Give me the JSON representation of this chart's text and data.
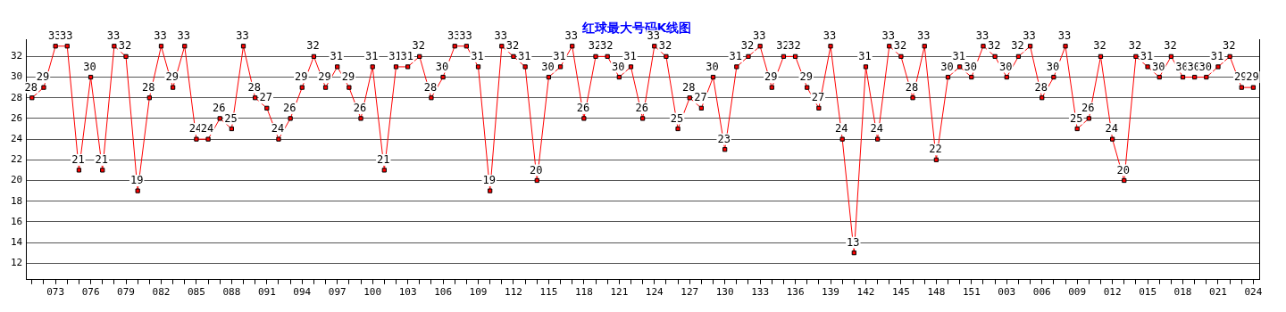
{
  "chart_data": {
    "type": "line",
    "title": "红球最大号码K线图",
    "categories": [
      null,
      null,
      "073",
      null,
      null,
      "076",
      null,
      null,
      "079",
      null,
      null,
      "082",
      null,
      null,
      "085",
      null,
      null,
      "088",
      null,
      null,
      "091",
      null,
      null,
      "094",
      null,
      null,
      "097",
      null,
      null,
      "100",
      null,
      null,
      "103",
      null,
      null,
      "106",
      null,
      null,
      "109",
      null,
      null,
      "112",
      null,
      null,
      "115",
      null,
      null,
      "118",
      null,
      null,
      "121",
      null,
      null,
      "124",
      null,
      null,
      "127",
      null,
      null,
      "130",
      null,
      null,
      "133",
      null,
      null,
      "136",
      null,
      null,
      "139",
      null,
      null,
      "142",
      null,
      null,
      "145",
      null,
      null,
      "148",
      null,
      null,
      "151",
      null,
      null,
      "003",
      null,
      null,
      "006",
      null,
      null,
      "009",
      null,
      null,
      "012",
      null,
      null,
      "015",
      null,
      null,
      "018",
      null,
      null,
      "021",
      null,
      null,
      "024"
    ],
    "series": [
      {
        "color": "#ff0000",
        "values": [
          28,
          29,
          33,
          33,
          21,
          30,
          21,
          33,
          32,
          19,
          28,
          33,
          29,
          33,
          24,
          24,
          26,
          25,
          33,
          28,
          27,
          24,
          26,
          29,
          32,
          29,
          31,
          29,
          26,
          31,
          21,
          31,
          31,
          32,
          28,
          30,
          33,
          33,
          31,
          19,
          33,
          32,
          31,
          20,
          30,
          31,
          33,
          26,
          32,
          32,
          30,
          31,
          26,
          33,
          32,
          25,
          28,
          27,
          30,
          23,
          31,
          32,
          33,
          29,
          32,
          32,
          29,
          27,
          33,
          24,
          13,
          31,
          24,
          33,
          32,
          28,
          33,
          22,
          30,
          31,
          30,
          33,
          32,
          30,
          32,
          33,
          28,
          30,
          33,
          25,
          26,
          32,
          24,
          20,
          32,
          31,
          30,
          32,
          30,
          30,
          30,
          31,
          32,
          29,
          29
        ]
      }
    ],
    "ylim": [
      10.4,
      33.6
    ],
    "yticks": [
      12,
      14,
      16,
      18,
      20,
      22,
      24,
      26,
      28,
      30,
      32
    ],
    "grid": "y",
    "marker": "square",
    "data_labels": true,
    "legend": false
  }
}
